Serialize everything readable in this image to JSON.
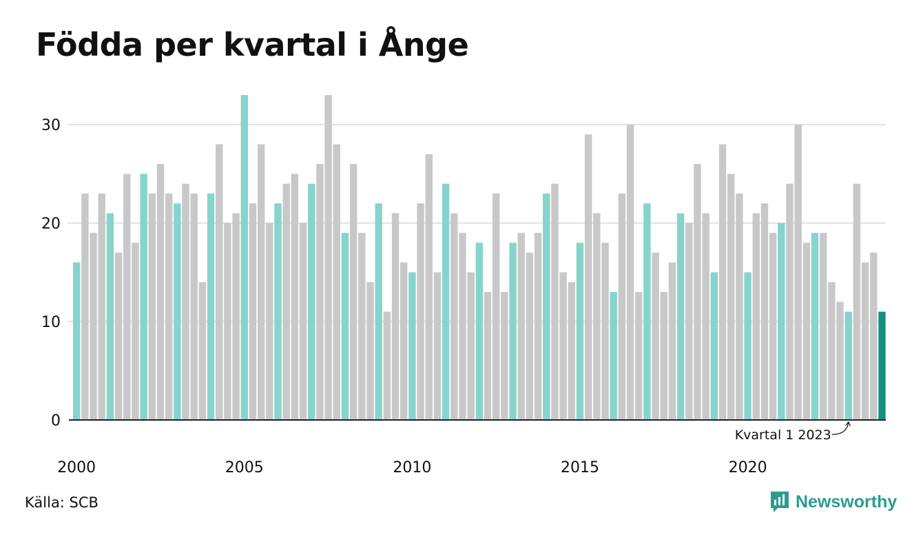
{
  "title": "Födda per kvartal i Ånge",
  "source": "Källa: SCB",
  "brand": "Newsworthy",
  "colors": {
    "q1_bar": "#86d4cb",
    "other_bar": "#c8c8c8",
    "highlight_bar": "#168f82",
    "grid": "#e2e2e2",
    "axis": "#222222",
    "brand": "#2a9d8f"
  },
  "chart_data": {
    "type": "bar",
    "y_ticks": [
      "0",
      "10",
      "20",
      "30"
    ],
    "x_ticks": [
      "2000",
      "2005",
      "2010",
      "2015",
      "2020"
    ],
    "ylim": [
      0,
      33
    ],
    "grid": true,
    "annotation": {
      "text": "Kvartal 1 2023",
      "target": "2023 Q1"
    },
    "highlight": "2024 Q1",
    "years": [
      2000,
      2001,
      2002,
      2003,
      2004,
      2005,
      2006,
      2007,
      2008,
      2009,
      2010,
      2011,
      2012,
      2013,
      2014,
      2015,
      2016,
      2017,
      2018,
      2019,
      2020,
      2021,
      2022,
      2023,
      2024
    ],
    "values": [
      16,
      23,
      19,
      23,
      21,
      17,
      25,
      18,
      25,
      23,
      26,
      23,
      22,
      24,
      23,
      14,
      23,
      28,
      20,
      21,
      33,
      22,
      28,
      20,
      22,
      24,
      25,
      20,
      24,
      26,
      33,
      28,
      19,
      26,
      19,
      14,
      22,
      11,
      21,
      16,
      15,
      22,
      27,
      15,
      24,
      21,
      19,
      15,
      18,
      13,
      23,
      13,
      18,
      19,
      17,
      19,
      23,
      24,
      15,
      14,
      18,
      29,
      21,
      18,
      13,
      23,
      30,
      13,
      22,
      17,
      13,
      16,
      21,
      20,
      26,
      21,
      15,
      28,
      25,
      23,
      15,
      21,
      22,
      19,
      20,
      24,
      30,
      18,
      19,
      19,
      14,
      12,
      11,
      24,
      16,
      17,
      11
    ]
  }
}
